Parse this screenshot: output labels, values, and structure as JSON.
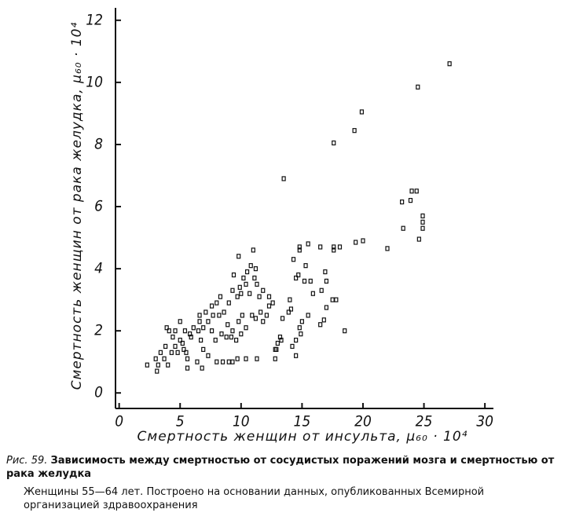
{
  "chart_data": {
    "type": "scatter",
    "xlabel": "Смертность женщин от инсульта, μ₆₀ · 10⁴",
    "ylabel": "Смертность женщин от рака желудка, μ₆₀ · 10⁴",
    "xlim": [
      -0.3,
      30.7
    ],
    "ylim": [
      -0.5,
      12.4
    ],
    "xticks": [
      0,
      5,
      10,
      15,
      20,
      25,
      30
    ],
    "yticks": [
      0,
      2,
      4,
      6,
      8,
      10,
      12
    ],
    "grid": false,
    "series": [
      {
        "color": "#111111",
        "x": [
          27.1,
          24.5,
          19.9,
          19.3,
          17.6,
          13.5,
          24.0,
          24.4,
          23.9,
          23.2,
          24.9,
          24.9,
          23.3,
          24.9,
          24.6,
          22.0,
          20.0,
          19.4,
          18.1,
          17.6,
          17.6,
          16.5,
          15.5,
          14.8,
          14.8,
          14.3,
          11.0,
          9.8,
          15.3,
          16.9,
          17.0,
          16.6,
          17.5,
          17.8,
          17.0,
          16.8,
          16.5,
          18.5,
          15.5,
          15.0,
          14.8,
          14.5,
          14.2,
          14.5,
          14.9,
          15.7,
          15.9,
          15.2,
          14.7,
          14.5,
          14.0,
          14.1,
          13.9,
          13.4,
          13.2,
          13.0,
          12.9,
          12.8,
          13.3,
          12.6,
          12.3,
          12.3,
          12.1,
          11.8,
          11.6,
          11.2,
          10.9,
          10.7,
          10.4,
          10.2,
          10.5,
          10.8,
          11.2,
          11.1,
          11.3,
          11.8,
          11.5,
          10.0,
          9.9,
          9.7,
          9.4,
          9.3,
          9.0,
          8.6,
          8.9,
          9.3,
          9.8,
          10.1,
          10.4,
          10.0,
          9.6,
          9.2,
          8.8,
          8.4,
          7.9,
          7.6,
          7.3,
          7.7,
          8.0,
          8.3,
          7.6,
          7.1,
          6.6,
          6.6,
          6.9,
          6.5,
          6.1,
          5.9,
          6.7,
          6.9,
          7.3,
          6.8,
          6.4,
          5.6,
          5.3,
          5.2,
          5.0,
          4.6,
          4.8,
          5.5,
          4.4,
          4.1,
          3.9,
          4.6,
          5.4,
          5.8,
          5.0,
          4.3,
          3.7,
          3.4,
          3.8,
          4.0,
          3.2,
          3.0,
          3.1,
          2.3,
          9.0,
          9.3,
          9.7,
          8.5,
          10.4,
          11.3,
          12.8,
          8.0,
          5.6,
          8.2
        ],
        "values": [
          10.6,
          9.85,
          9.05,
          8.45,
          8.05,
          6.9,
          6.5,
          6.5,
          6.2,
          6.15,
          5.7,
          5.5,
          5.3,
          5.3,
          4.95,
          4.65,
          4.9,
          4.85,
          4.7,
          4.6,
          4.7,
          4.7,
          4.8,
          4.7,
          4.6,
          4.3,
          4.6,
          4.4,
          4.1,
          3.9,
          3.6,
          3.3,
          3.0,
          3.0,
          2.75,
          2.35,
          2.2,
          2.0,
          2.5,
          2.3,
          2.1,
          1.7,
          1.5,
          1.2,
          1.9,
          3.6,
          3.2,
          3.6,
          3.8,
          3.7,
          3.0,
          2.7,
          2.6,
          2.4,
          1.8,
          1.6,
          1.4,
          1.1,
          1.7,
          2.9,
          3.1,
          2.8,
          2.5,
          2.3,
          2.6,
          2.4,
          2.5,
          3.2,
          3.5,
          3.7,
          3.9,
          4.1,
          4.0,
          3.7,
          3.5,
          3.3,
          3.1,
          3.2,
          3.4,
          3.1,
          3.8,
          3.3,
          2.9,
          2.6,
          2.2,
          2.0,
          2.3,
          2.5,
          2.1,
          1.9,
          1.7,
          1.8,
          1.8,
          1.9,
          1.7,
          2.0,
          2.3,
          2.5,
          2.9,
          3.1,
          2.8,
          2.6,
          2.5,
          2.3,
          2.1,
          2.0,
          2.1,
          1.8,
          1.7,
          1.4,
          1.2,
          0.8,
          1.0,
          1.1,
          1.4,
          1.6,
          1.7,
          1.5,
          1.3,
          1.3,
          1.8,
          2.0,
          2.1,
          2.0,
          2.0,
          1.9,
          2.3,
          1.3,
          1.1,
          1.3,
          1.5,
          0.9,
          0.9,
          1.1,
          0.7,
          0.9,
          1.0,
          1.0,
          1.1,
          1.0,
          1.1,
          1.1,
          1.4,
          1.0,
          0.8,
          2.5
        ]
      }
    ]
  },
  "caption": {
    "figure": "Рис. 59.",
    "title": "Зависимость между смертностью от сосудистых поражений мозга и смертностью от рака желудка",
    "note": "Женщины 55—64 лет. Построено на основании данных, опубликованных Всемирной организацией здравоохранения"
  }
}
